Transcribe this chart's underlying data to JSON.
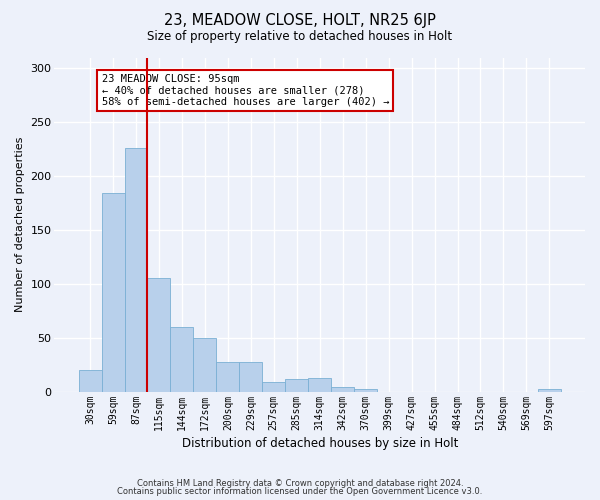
{
  "title1": "23, MEADOW CLOSE, HOLT, NR25 6JP",
  "title2": "Size of property relative to detached houses in Holt",
  "xlabel": "Distribution of detached houses by size in Holt",
  "ylabel": "Number of detached properties",
  "footer1": "Contains HM Land Registry data © Crown copyright and database right 2024.",
  "footer2": "Contains public sector information licensed under the Open Government Licence v3.0.",
  "categories": [
    "30sqm",
    "59sqm",
    "87sqm",
    "115sqm",
    "144sqm",
    "172sqm",
    "200sqm",
    "229sqm",
    "257sqm",
    "285sqm",
    "314sqm",
    "342sqm",
    "370sqm",
    "399sqm",
    "427sqm",
    "455sqm",
    "484sqm",
    "512sqm",
    "540sqm",
    "569sqm",
    "597sqm"
  ],
  "values": [
    20,
    184,
    226,
    106,
    60,
    50,
    28,
    28,
    9,
    12,
    13,
    5,
    3,
    0,
    0,
    0,
    0,
    0,
    0,
    0,
    3
  ],
  "bar_color": "#b8d0eb",
  "bar_edge_color": "#7aafd4",
  "background_color": "#edf1fa",
  "grid_color": "#ffffff",
  "annotation_line1": "23 MEADOW CLOSE: 95sqm",
  "annotation_line2": "← 40% of detached houses are smaller (278)",
  "annotation_line3": "58% of semi-detached houses are larger (402) →",
  "annotation_box_facecolor": "#ffffff",
  "annotation_box_edgecolor": "#cc0000",
  "vline_color": "#cc0000",
  "vline_xindex": 2.5,
  "ylim": [
    0,
    310
  ],
  "yticks": [
    0,
    50,
    100,
    150,
    200,
    250,
    300
  ]
}
